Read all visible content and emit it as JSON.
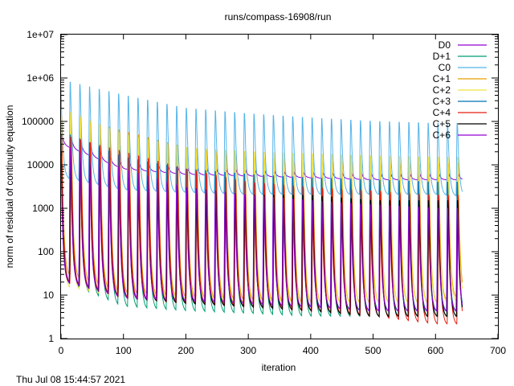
{
  "chart_data": {
    "type": "line",
    "title": "runs/compass-16908/run",
    "xlabel": "iteration",
    "ylabel": "norm of residual of continuity equation",
    "xlim": [
      0,
      700
    ],
    "ylim": [
      1,
      10000000
    ],
    "yscale": "log",
    "x_ticks": [
      "0",
      "100",
      "200",
      "300",
      "400",
      "500",
      "600",
      "700"
    ],
    "y_ticks": [
      "1",
      "10",
      "100",
      "1000",
      "10000",
      "100000",
      "1e+06",
      "1e+07"
    ],
    "legend_position": "top-right",
    "grid": false,
    "cycle_period": 15.5,
    "x_max": 643,
    "series": [
      {
        "name": "D0",
        "color": "#9400d3",
        "peaks_x": [
          0,
          100,
          200,
          300,
          400,
          500,
          600,
          643
        ],
        "peaks": [
          60000,
          12000,
          9000,
          8000,
          7000,
          6500,
          6500,
          6500
        ],
        "troughs_x": [
          0,
          100,
          200,
          300,
          400,
          500,
          600,
          643
        ],
        "troughs": [
          30000,
          8000,
          6000,
          5500,
          5000,
          4500,
          4500,
          4500
        ]
      },
      {
        "name": "D+1",
        "color": "#009e73",
        "peaks_x": [
          0,
          100,
          200,
          300,
          400,
          500,
          600,
          643
        ],
        "peaks": [
          100000,
          30000,
          15000,
          8000,
          5000,
          4000,
          3500,
          3500
        ],
        "troughs_x": [
          0,
          100,
          200,
          300,
          400,
          500,
          600,
          643
        ],
        "troughs": [
          20,
          5,
          4,
          3.5,
          3,
          3,
          3,
          3
        ]
      },
      {
        "name": "C0",
        "color": "#56b4e9",
        "peaks_x": [
          0,
          100,
          200,
          300,
          400,
          500,
          600,
          643
        ],
        "peaks": [
          900000,
          400000,
          200000,
          150000,
          120000,
          100000,
          90000,
          90000
        ],
        "troughs_x": [
          0,
          100,
          200,
          300,
          400,
          500,
          600,
          643
        ],
        "troughs": [
          5000,
          2500,
          2200,
          2000,
          2000,
          2000,
          2000,
          1800
        ]
      },
      {
        "name": "C+1",
        "color": "#e69f00",
        "peaks_x": [
          0,
          100,
          200,
          300,
          400,
          500,
          600,
          643
        ],
        "peaks": [
          150000,
          60000,
          25000,
          15000,
          12000,
          11000,
          11000,
          11000
        ],
        "troughs_x": [
          0,
          100,
          200,
          300,
          400,
          500,
          600,
          643
        ],
        "troughs": [
          30,
          10,
          8,
          7,
          6,
          6,
          6,
          9
        ]
      },
      {
        "name": "C+2",
        "color": "#f0e442",
        "peaks_x": [
          0,
          100,
          200,
          300,
          400,
          500,
          600,
          643
        ],
        "peaks": [
          200000,
          50000,
          25000,
          20000,
          18000,
          16000,
          15000,
          15000
        ],
        "troughs_x": [
          0,
          100,
          200,
          300,
          400,
          500,
          600,
          643
        ],
        "troughs": [
          15,
          8,
          7,
          6,
          6,
          6,
          6,
          7
        ]
      },
      {
        "name": "C+3",
        "color": "#0072b2",
        "peaks_x": [
          0,
          100,
          200,
          300,
          400,
          500,
          600,
          643
        ],
        "peaks": [
          60000,
          15000,
          8000,
          6000,
          5000,
          4500,
          4000,
          4000
        ],
        "troughs_x": [
          0,
          100,
          200,
          300,
          400,
          500,
          600,
          643
        ],
        "troughs": [
          20,
          8,
          6,
          5,
          5,
          4,
          4,
          4
        ]
      },
      {
        "name": "C+4",
        "color": "#e51e10",
        "peaks_x": [
          0,
          100,
          200,
          300,
          400,
          500,
          600,
          643
        ],
        "peaks": [
          50000,
          20000,
          8000,
          4000,
          3000,
          2500,
          2000,
          2000
        ],
        "troughs_x": [
          0,
          100,
          200,
          300,
          400,
          500,
          600,
          643
        ],
        "troughs": [
          20,
          8,
          6,
          5,
          4,
          3,
          2,
          2
        ]
      },
      {
        "name": "C+5",
        "color": "#000000",
        "peaks_x": [
          0,
          100,
          200,
          300,
          400,
          500,
          600,
          643
        ],
        "peaks": [
          20000,
          5000,
          3000,
          2000,
          2000,
          1500,
          1500,
          1500
        ],
        "troughs_x": [
          0,
          100,
          200,
          300,
          400,
          500,
          600,
          643
        ],
        "troughs": [
          20,
          8,
          6,
          5,
          4,
          3,
          3,
          3
        ]
      },
      {
        "name": "C+6",
        "color": "#9400d3",
        "peaks_x": [
          0,
          100,
          200,
          300,
          400,
          500,
          600,
          643
        ],
        "peaks": [
          30000,
          8000,
          3000,
          2000,
          1500,
          1200,
          1000,
          1000
        ],
        "troughs_x": [
          0,
          100,
          200,
          300,
          400,
          500,
          600,
          643
        ],
        "troughs": [
          20,
          8,
          7,
          6,
          5,
          4,
          4,
          4
        ]
      }
    ]
  },
  "footer": {
    "timestamp": "Thu Jul 08 15:44:57 2021"
  }
}
